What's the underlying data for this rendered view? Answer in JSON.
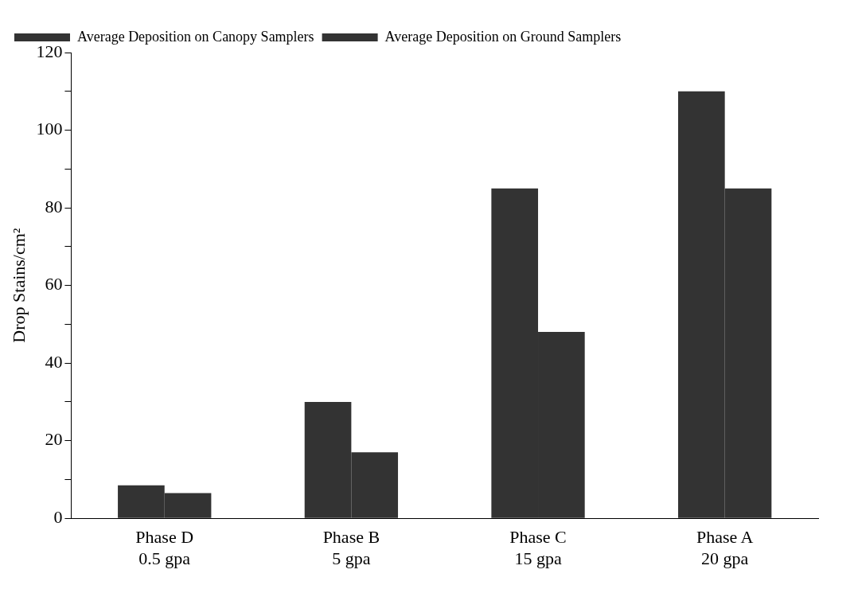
{
  "chart_data": {
    "type": "bar",
    "ylabel": "Drop Stains/cm²",
    "categories": [
      "Phase D\n0.5 gpa",
      "Phase B\n5 gpa",
      "Phase C\n15 gpa",
      "Phase A\n20 gpa"
    ],
    "series": [
      {
        "name": "Average Deposition on Canopy Samplers",
        "color": "#333333",
        "values": [
          8.5,
          30,
          85,
          110
        ]
      },
      {
        "name": "Average Deposition on Ground Samplers",
        "color": "#333333",
        "values": [
          6.5,
          17,
          48,
          85
        ]
      }
    ],
    "ylim": [
      0,
      120
    ],
    "yticks": [
      0,
      {
        "value": 10,
        "label": null
      },
      20,
      {
        "value": 30,
        "label": null
      },
      40,
      {
        "value": 50,
        "label": null
      },
      60,
      {
        "value": 70,
        "label": null
      },
      80,
      {
        "value": 90,
        "label": null
      },
      100,
      {
        "value": 110,
        "label": null
      },
      120
    ],
    "grid": false,
    "legend": "top left"
  }
}
